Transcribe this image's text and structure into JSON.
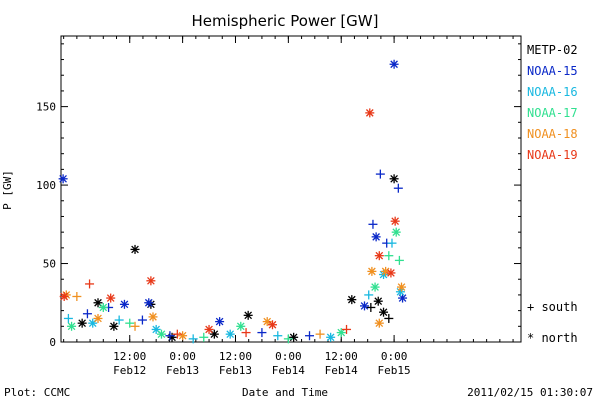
{
  "chart_data": {
    "type": "scatter",
    "title": "Hemispheric Power [GW]",
    "xlabel": "Date and Time",
    "ylabel": "P [GW]",
    "xlim": [
      -0.15,
      4.2
    ],
    "ylim": [
      0,
      195
    ],
    "yticks": [
      0,
      50,
      100,
      150
    ],
    "xtick_labels": [
      {
        "x": 0.5,
        "top": "12:00",
        "bottom": "Feb12"
      },
      {
        "x": 1.0,
        "top": "0:00",
        "bottom": "Feb13"
      },
      {
        "x": 1.5,
        "top": "12:00",
        "bottom": "Feb13"
      },
      {
        "x": 2.0,
        "top": "0:00",
        "bottom": "Feb14"
      },
      {
        "x": 2.5,
        "top": "12:00",
        "bottom": "Feb14"
      },
      {
        "x": 3.0,
        "top": "0:00",
        "bottom": "Feb15"
      }
    ],
    "marker_legend": [
      {
        "symbol": "+",
        "label": "south"
      },
      {
        "symbol": "*",
        "label": "north"
      }
    ],
    "series": [
      {
        "name": "METP-02",
        "color": "#000000",
        "points": [
          {
            "x": 0.05,
            "y": 12,
            "m": "*"
          },
          {
            "x": 0.2,
            "y": 25,
            "m": "*"
          },
          {
            "x": 0.35,
            "y": 10,
            "m": "*"
          },
          {
            "x": 0.55,
            "y": 59,
            "m": "*"
          },
          {
            "x": 0.7,
            "y": 24,
            "m": "*"
          },
          {
            "x": 0.9,
            "y": 3,
            "m": "*"
          },
          {
            "x": 1.3,
            "y": 5,
            "m": "*"
          },
          {
            "x": 1.62,
            "y": 17,
            "m": "*"
          },
          {
            "x": 2.05,
            "y": 3,
            "m": "*"
          },
          {
            "x": 2.6,
            "y": 27,
            "m": "*"
          },
          {
            "x": 2.78,
            "y": 22,
            "m": "+"
          },
          {
            "x": 2.85,
            "y": 26,
            "m": "*"
          },
          {
            "x": 2.95,
            "y": 15,
            "m": "+"
          },
          {
            "x": 3.0,
            "y": 104,
            "m": "*"
          },
          {
            "x": 2.9,
            "y": 19,
            "m": "*"
          }
        ]
      },
      {
        "name": "NOAA-15",
        "color": "#0a28c8",
        "points": [
          {
            "x": -0.13,
            "y": 104,
            "m": "*"
          },
          {
            "x": 0.1,
            "y": 18,
            "m": "+"
          },
          {
            "x": 0.3,
            "y": 22,
            "m": "+"
          },
          {
            "x": 0.45,
            "y": 24,
            "m": "*"
          },
          {
            "x": 0.62,
            "y": 14,
            "m": "+"
          },
          {
            "x": 0.68,
            "y": 25,
            "m": "*"
          },
          {
            "x": 0.88,
            "y": 4,
            "m": "+"
          },
          {
            "x": 1.35,
            "y": 13,
            "m": "*"
          },
          {
            "x": 1.75,
            "y": 6,
            "m": "+"
          },
          {
            "x": 2.2,
            "y": 4,
            "m": "+"
          },
          {
            "x": 2.72,
            "y": 23,
            "m": "*"
          },
          {
            "x": 2.8,
            "y": 75,
            "m": "+"
          },
          {
            "x": 2.83,
            "y": 67,
            "m": "*"
          },
          {
            "x": 2.87,
            "y": 107,
            "m": "+"
          },
          {
            "x": 2.93,
            "y": 63,
            "m": "+"
          },
          {
            "x": 3.0,
            "y": 177,
            "m": "*"
          },
          {
            "x": 3.04,
            "y": 98,
            "m": "+"
          },
          {
            "x": 3.08,
            "y": 28,
            "m": "*"
          }
        ]
      },
      {
        "name": "NOAA-16",
        "color": "#18b8e0",
        "points": [
          {
            "x": -0.08,
            "y": 15,
            "m": "+"
          },
          {
            "x": 0.15,
            "y": 12,
            "m": "*"
          },
          {
            "x": 0.4,
            "y": 14,
            "m": "+"
          },
          {
            "x": 0.75,
            "y": 8,
            "m": "*"
          },
          {
            "x": 1.1,
            "y": 2,
            "m": "+"
          },
          {
            "x": 1.45,
            "y": 5,
            "m": "*"
          },
          {
            "x": 1.9,
            "y": 4,
            "m": "+"
          },
          {
            "x": 2.4,
            "y": 3,
            "m": "*"
          },
          {
            "x": 2.76,
            "y": 30,
            "m": "+"
          },
          {
            "x": 2.9,
            "y": 43,
            "m": "*"
          },
          {
            "x": 2.98,
            "y": 63,
            "m": "+"
          },
          {
            "x": 3.06,
            "y": 32,
            "m": "*"
          }
        ]
      },
      {
        "name": "NOAA-17",
        "color": "#30e090",
        "points": [
          {
            "x": -0.05,
            "y": 10,
            "m": "*"
          },
          {
            "x": 0.25,
            "y": 22,
            "m": "*"
          },
          {
            "x": 0.5,
            "y": 12,
            "m": "+"
          },
          {
            "x": 0.8,
            "y": 5,
            "m": "*"
          },
          {
            "x": 1.2,
            "y": 3,
            "m": "+"
          },
          {
            "x": 1.55,
            "y": 10,
            "m": "*"
          },
          {
            "x": 2.0,
            "y": 2,
            "m": "+"
          },
          {
            "x": 2.5,
            "y": 6,
            "m": "*"
          },
          {
            "x": 2.82,
            "y": 35,
            "m": "*"
          },
          {
            "x": 2.95,
            "y": 55,
            "m": "+"
          },
          {
            "x": 3.02,
            "y": 70,
            "m": "*"
          },
          {
            "x": 3.05,
            "y": 52,
            "m": "+"
          }
        ]
      },
      {
        "name": "NOAA-18",
        "color": "#f09020",
        "points": [
          {
            "x": -0.1,
            "y": 30,
            "m": "*"
          },
          {
            "x": 0.0,
            "y": 29,
            "m": "+"
          },
          {
            "x": 0.2,
            "y": 15,
            "m": "*"
          },
          {
            "x": 0.55,
            "y": 10,
            "m": "+"
          },
          {
            "x": 0.72,
            "y": 16,
            "m": "*"
          },
          {
            "x": 1.0,
            "y": 4,
            "m": "*"
          },
          {
            "x": 1.8,
            "y": 13,
            "m": "*"
          },
          {
            "x": 2.3,
            "y": 5,
            "m": "+"
          },
          {
            "x": 2.79,
            "y": 45,
            "m": "*"
          },
          {
            "x": 2.86,
            "y": 12,
            "m": "*"
          },
          {
            "x": 2.92,
            "y": 45,
            "m": "*"
          },
          {
            "x": 3.07,
            "y": 35,
            "m": "*"
          }
        ]
      },
      {
        "name": "NOAA-19",
        "color": "#e83818",
        "points": [
          {
            "x": -0.12,
            "y": 29,
            "m": "*"
          },
          {
            "x": 0.12,
            "y": 37,
            "m": "+"
          },
          {
            "x": 0.32,
            "y": 28,
            "m": "*"
          },
          {
            "x": 0.7,
            "y": 39,
            "m": "*"
          },
          {
            "x": 0.95,
            "y": 5,
            "m": "+"
          },
          {
            "x": 1.25,
            "y": 8,
            "m": "*"
          },
          {
            "x": 1.6,
            "y": 6,
            "m": "+"
          },
          {
            "x": 1.85,
            "y": 11,
            "m": "*"
          },
          {
            "x": 2.55,
            "y": 8,
            "m": "+"
          },
          {
            "x": 2.77,
            "y": 146,
            "m": "*"
          },
          {
            "x": 2.86,
            "y": 55,
            "m": "*"
          },
          {
            "x": 2.97,
            "y": 44,
            "m": "*"
          },
          {
            "x": 3.01,
            "y": 77,
            "m": "*"
          }
        ]
      }
    ]
  },
  "footer": {
    "plot_label": "Plot: CCMC",
    "timestamp": "2011/02/15 01:30:07"
  }
}
